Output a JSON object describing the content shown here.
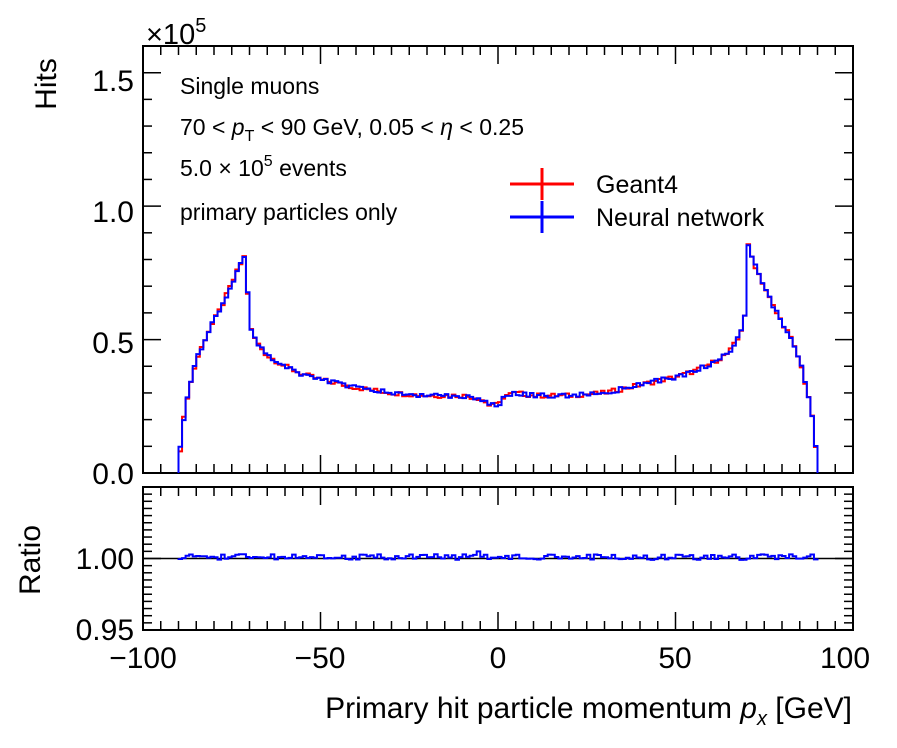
{
  "chart_data": [
    {
      "type": "histogram",
      "panel": "main",
      "exponent_label": "×10",
      "exponent_power": "5",
      "ylabel": "Hits",
      "ylim": [
        0,
        1.6
      ],
      "y_ticks": [
        0.0,
        0.5,
        1.0,
        1.5
      ],
      "y_tick_labels": [
        "0.0",
        "0.5",
        "1.0",
        "1.5"
      ],
      "xlim": [
        -100,
        100
      ],
      "bin_range": [
        -90,
        90
      ],
      "annotations": {
        "line1": "Single muons",
        "line2_prefix": "70 < ",
        "line2_p": "p",
        "line2_T": "T",
        "line2_mid": " < 90 GeV, 0.05 < ",
        "line2_eta": "η",
        "line2_suffix": " < 0.25",
        "line3_prefix": "5.0 × 10",
        "line3_power": "5",
        "line3_suffix": " events",
        "line4": "primary particles only"
      },
      "legend": {
        "placement": "top-right",
        "entries": [
          "Geant4",
          "Neural network"
        ]
      },
      "series": [
        {
          "name": "Geant4",
          "color": "#ff0000",
          "profile": {
            "x": [
              -90,
              -89.5,
              -88,
              -85,
              -82,
              -78,
              -75,
              -73,
              -71.5,
              -71,
              -70,
              -68,
              -65,
              -60,
              -55,
              -50,
              -40,
              -30,
              -20,
              -10,
              -5,
              -2,
              -1,
              0,
              1,
              2,
              5,
              10,
              20,
              30,
              40,
              50,
              55,
              60,
              65,
              68,
              70,
              70.5,
              72,
              75,
              78,
              82,
              85,
              88,
              89.5,
              90
            ],
            "y": [
              0.0,
              0.09,
              0.26,
              0.42,
              0.52,
              0.62,
              0.71,
              0.77,
              0.81,
              0.8,
              0.55,
              0.49,
              0.44,
              0.4,
              0.37,
              0.35,
              0.32,
              0.3,
              0.29,
              0.29,
              0.28,
              0.25,
              0.27,
              0.24,
              0.28,
              0.29,
              0.3,
              0.29,
              0.29,
              0.3,
              0.33,
              0.36,
              0.38,
              0.41,
              0.45,
              0.51,
              0.62,
              0.85,
              0.79,
              0.7,
              0.61,
              0.52,
              0.42,
              0.26,
              0.1,
              0.0
            ]
          }
        },
        {
          "name": "Neural network",
          "color": "#0000ff",
          "profile": {
            "x": [
              -90,
              -89.5,
              -88,
              -85,
              -82,
              -78,
              -75,
              -73,
              -71.5,
              -71,
              -70,
              -68,
              -65,
              -60,
              -55,
              -50,
              -40,
              -30,
              -20,
              -10,
              -5,
              -2,
              -1,
              0,
              1,
              2,
              5,
              10,
              20,
              30,
              40,
              50,
              55,
              60,
              65,
              68,
              70,
              70.5,
              72,
              75,
              78,
              82,
              85,
              88,
              89.5,
              90
            ],
            "y": [
              0.0,
              0.09,
              0.26,
              0.42,
              0.52,
              0.62,
              0.71,
              0.77,
              0.81,
              0.8,
              0.55,
              0.49,
              0.44,
              0.4,
              0.37,
              0.35,
              0.32,
              0.3,
              0.29,
              0.29,
              0.28,
              0.25,
              0.27,
              0.24,
              0.28,
              0.29,
              0.3,
              0.29,
              0.29,
              0.3,
              0.33,
              0.36,
              0.38,
              0.41,
              0.45,
              0.51,
              0.62,
              0.85,
              0.79,
              0.7,
              0.61,
              0.52,
              0.42,
              0.26,
              0.1,
              0.0
            ]
          }
        }
      ]
    },
    {
      "type": "histogram",
      "panel": "ratio",
      "ylabel": "Ratio",
      "ylim": [
        0.95,
        1.05
      ],
      "y_ticks": [
        0.95,
        1.0
      ],
      "y_tick_labels": [
        "0.95",
        "1.00"
      ],
      "xlim": [
        -100,
        100
      ],
      "x_ticks": [
        -100,
        -50,
        0,
        50,
        100
      ],
      "x_tick_labels": [
        "−100",
        "−50",
        "0",
        "50",
        "100"
      ],
      "xlabel_prefix": "Primary hit particle momentum ",
      "xlabel_p": "p",
      "xlabel_x": "x",
      "xlabel_suffix": " [GeV]",
      "reference_line": 1.0,
      "series": [
        {
          "name": "Neural network / Geant4",
          "color": "#0000ff",
          "bin_range": [
            -90,
            90
          ],
          "value_range": [
            0.998,
            1.005
          ]
        }
      ]
    }
  ]
}
